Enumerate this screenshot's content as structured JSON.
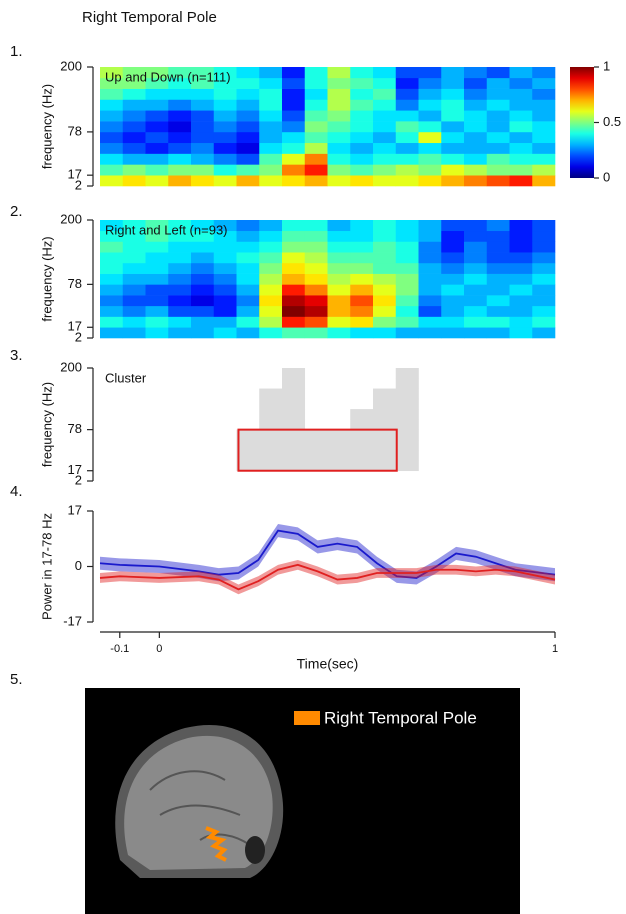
{
  "title": "Right Temporal Pole",
  "panel_labels": [
    "1.",
    "2.",
    "3.",
    "4.",
    "5."
  ],
  "brain_legend": "Right Temporal Pole",
  "chart_data": [
    {
      "type": "heatmap",
      "title": "Up and Down (n=111)",
      "ylabel": "frequency (Hz)",
      "xlim": [
        -0.15,
        1
      ],
      "ybins": [
        2,
        17,
        32,
        48,
        63,
        78,
        98,
        118,
        138,
        158,
        178,
        200
      ],
      "yticks": [
        2,
        17,
        78,
        200
      ],
      "colormap": "jet",
      "clim": [
        0,
        1
      ],
      "colorbar_ticks": [
        0,
        0.5,
        1
      ],
      "values": [
        [
          0.6,
          0.65,
          0.6,
          0.7,
          0.65,
          0.6,
          0.7,
          0.6,
          0.65,
          0.7,
          0.6,
          0.65,
          0.6,
          0.6,
          0.65,
          0.7,
          0.75,
          0.8,
          0.85,
          0.7
        ],
        [
          0.45,
          0.5,
          0.45,
          0.5,
          0.5,
          0.4,
          0.45,
          0.5,
          0.75,
          0.85,
          0.5,
          0.45,
          0.5,
          0.55,
          0.5,
          0.6,
          0.55,
          0.5,
          0.5,
          0.55
        ],
        [
          0.35,
          0.3,
          0.3,
          0.35,
          0.3,
          0.25,
          0.2,
          0.45,
          0.6,
          0.75,
          0.4,
          0.35,
          0.4,
          0.4,
          0.45,
          0.4,
          0.35,
          0.45,
          0.4,
          0.4
        ],
        [
          0.25,
          0.2,
          0.15,
          0.2,
          0.25,
          0.15,
          0.1,
          0.35,
          0.4,
          0.55,
          0.35,
          0.3,
          0.35,
          0.3,
          0.35,
          0.3,
          0.3,
          0.3,
          0.35,
          0.3
        ],
        [
          0.2,
          0.15,
          0.2,
          0.15,
          0.2,
          0.2,
          0.15,
          0.3,
          0.35,
          0.45,
          0.4,
          0.35,
          0.3,
          0.4,
          0.6,
          0.35,
          0.3,
          0.35,
          0.3,
          0.35
        ],
        [
          0.25,
          0.2,
          0.15,
          0.1,
          0.2,
          0.25,
          0.2,
          0.3,
          0.25,
          0.5,
          0.45,
          0.4,
          0.35,
          0.45,
          0.4,
          0.3,
          0.35,
          0.3,
          0.4,
          0.35
        ],
        [
          0.3,
          0.25,
          0.2,
          0.15,
          0.2,
          0.3,
          0.25,
          0.35,
          0.2,
          0.45,
          0.5,
          0.4,
          0.35,
          0.35,
          0.3,
          0.4,
          0.35,
          0.3,
          0.35,
          0.3
        ],
        [
          0.35,
          0.3,
          0.3,
          0.25,
          0.3,
          0.35,
          0.3,
          0.4,
          0.15,
          0.4,
          0.55,
          0.45,
          0.4,
          0.25,
          0.35,
          0.4,
          0.3,
          0.35,
          0.3,
          0.3
        ],
        [
          0.45,
          0.4,
          0.35,
          0.35,
          0.35,
          0.4,
          0.35,
          0.4,
          0.15,
          0.35,
          0.55,
          0.4,
          0.45,
          0.2,
          0.3,
          0.35,
          0.25,
          0.3,
          0.3,
          0.25
        ],
        [
          0.5,
          0.5,
          0.45,
          0.4,
          0.45,
          0.4,
          0.4,
          0.35,
          0.2,
          0.4,
          0.5,
          0.45,
          0.4,
          0.15,
          0.25,
          0.3,
          0.2,
          0.3,
          0.25,
          0.3
        ],
        [
          0.55,
          0.5,
          0.5,
          0.45,
          0.45,
          0.4,
          0.35,
          0.3,
          0.15,
          0.4,
          0.55,
          0.4,
          0.35,
          0.2,
          0.2,
          0.3,
          0.25,
          0.2,
          0.3,
          0.25
        ]
      ]
    },
    {
      "type": "heatmap",
      "title": "Right and Left (n=93)",
      "ylabel": "frequency (Hz)",
      "xlim": [
        -0.15,
        1
      ],
      "ybins": [
        2,
        17,
        32,
        48,
        63,
        78,
        98,
        118,
        138,
        158,
        178,
        200
      ],
      "yticks": [
        2,
        17,
        78,
        200
      ],
      "colormap": "jet",
      "clim": [
        0,
        1
      ],
      "values": [
        [
          0.3,
          0.3,
          0.35,
          0.3,
          0.3,
          0.35,
          0.3,
          0.4,
          0.45,
          0.45,
          0.4,
          0.35,
          0.35,
          0.3,
          0.3,
          0.3,
          0.3,
          0.3,
          0.35,
          0.3
        ],
        [
          0.4,
          0.35,
          0.4,
          0.35,
          0.3,
          0.3,
          0.4,
          0.55,
          0.85,
          0.8,
          0.6,
          0.65,
          0.5,
          0.45,
          0.35,
          0.35,
          0.4,
          0.4,
          0.35,
          0.4
        ],
        [
          0.3,
          0.25,
          0.3,
          0.2,
          0.2,
          0.15,
          0.3,
          0.6,
          1.0,
          0.95,
          0.7,
          0.75,
          0.6,
          0.4,
          0.2,
          0.3,
          0.35,
          0.3,
          0.3,
          0.35
        ],
        [
          0.25,
          0.2,
          0.2,
          0.15,
          0.1,
          0.15,
          0.25,
          0.65,
          0.95,
          0.9,
          0.7,
          0.8,
          0.65,
          0.45,
          0.25,
          0.3,
          0.3,
          0.35,
          0.3,
          0.3
        ],
        [
          0.3,
          0.25,
          0.2,
          0.2,
          0.15,
          0.2,
          0.3,
          0.6,
          0.85,
          0.75,
          0.6,
          0.7,
          0.6,
          0.5,
          0.3,
          0.35,
          0.3,
          0.3,
          0.35,
          0.3
        ],
        [
          0.35,
          0.3,
          0.3,
          0.25,
          0.2,
          0.25,
          0.35,
          0.55,
          0.7,
          0.65,
          0.55,
          0.6,
          0.55,
          0.5,
          0.3,
          0.3,
          0.35,
          0.3,
          0.3,
          0.35
        ],
        [
          0.4,
          0.35,
          0.35,
          0.3,
          0.25,
          0.3,
          0.35,
          0.5,
          0.65,
          0.6,
          0.5,
          0.5,
          0.45,
          0.45,
          0.3,
          0.25,
          0.3,
          0.25,
          0.25,
          0.3
        ],
        [
          0.4,
          0.4,
          0.35,
          0.35,
          0.3,
          0.35,
          0.4,
          0.45,
          0.6,
          0.55,
          0.45,
          0.45,
          0.45,
          0.4,
          0.25,
          0.2,
          0.25,
          0.2,
          0.2,
          0.25
        ],
        [
          0.45,
          0.4,
          0.4,
          0.35,
          0.35,
          0.35,
          0.35,
          0.4,
          0.5,
          0.5,
          0.4,
          0.4,
          0.45,
          0.4,
          0.25,
          0.15,
          0.25,
          0.2,
          0.15,
          0.2
        ],
        [
          0.4,
          0.4,
          0.45,
          0.4,
          0.4,
          0.35,
          0.3,
          0.35,
          0.45,
          0.45,
          0.35,
          0.35,
          0.4,
          0.35,
          0.3,
          0.15,
          0.2,
          0.2,
          0.15,
          0.2
        ],
        [
          0.35,
          0.4,
          0.45,
          0.4,
          0.35,
          0.3,
          0.25,
          0.3,
          0.4,
          0.4,
          0.3,
          0.35,
          0.4,
          0.35,
          0.3,
          0.2,
          0.2,
          0.25,
          0.15,
          0.2
        ]
      ]
    },
    {
      "type": "mask",
      "title": "Cluster",
      "ylabel": "frequency (Hz)",
      "xlim": [
        -0.15,
        1
      ],
      "ybins": [
        2,
        17,
        32,
        48,
        63,
        78,
        98,
        118,
        138,
        158,
        178,
        200
      ],
      "yticks": [
        2,
        17,
        78,
        200
      ],
      "color": "#dcdcdc",
      "box": {
        "xlim": [
          0.2,
          0.6
        ],
        "ylim": [
          17,
          78
        ],
        "color": "#e02020"
      },
      "values": [
        [
          0,
          0,
          0,
          0,
          0,
          0,
          0,
          0,
          0,
          0,
          0,
          0,
          0,
          0,
          0,
          0,
          0,
          0,
          0,
          0
        ],
        [
          0,
          0,
          0,
          0,
          0,
          0,
          1,
          1,
          1,
          1,
          1,
          1,
          1,
          1,
          0,
          0,
          0,
          0,
          0,
          0
        ],
        [
          0,
          0,
          0,
          0,
          0,
          0,
          1,
          1,
          1,
          1,
          1,
          1,
          1,
          1,
          0,
          0,
          0,
          0,
          0,
          0
        ],
        [
          0,
          0,
          0,
          0,
          0,
          0,
          1,
          1,
          1,
          1,
          1,
          1,
          1,
          1,
          0,
          0,
          0,
          0,
          0,
          0
        ],
        [
          0,
          0,
          0,
          0,
          0,
          0,
          1,
          1,
          1,
          1,
          1,
          1,
          1,
          1,
          0,
          0,
          0,
          0,
          0,
          0
        ],
        [
          0,
          0,
          0,
          0,
          0,
          0,
          0,
          1,
          1,
          0,
          0,
          1,
          1,
          1,
          0,
          0,
          0,
          0,
          0,
          0
        ],
        [
          0,
          0,
          0,
          0,
          0,
          0,
          0,
          1,
          1,
          0,
          0,
          1,
          1,
          1,
          0,
          0,
          0,
          0,
          0,
          0
        ],
        [
          0,
          0,
          0,
          0,
          0,
          0,
          0,
          1,
          1,
          0,
          0,
          0,
          1,
          1,
          0,
          0,
          0,
          0,
          0,
          0
        ],
        [
          0,
          0,
          0,
          0,
          0,
          0,
          0,
          1,
          1,
          0,
          0,
          0,
          1,
          1,
          0,
          0,
          0,
          0,
          0,
          0
        ],
        [
          0,
          0,
          0,
          0,
          0,
          0,
          0,
          0,
          1,
          0,
          0,
          0,
          0,
          1,
          0,
          0,
          0,
          0,
          0,
          0
        ],
        [
          0,
          0,
          0,
          0,
          0,
          0,
          0,
          0,
          1,
          0,
          0,
          0,
          0,
          1,
          0,
          0,
          0,
          0,
          0,
          0
        ]
      ]
    },
    {
      "type": "line",
      "ylabel": "Power in 17-78 Hz",
      "xlabel": "Time(sec)",
      "xlim": [
        -0.15,
        1
      ],
      "xticks": [
        -0.1,
        0,
        1
      ],
      "ylim": [
        -17,
        17
      ],
      "yticks": [
        -17,
        0,
        17
      ],
      "x": [
        -0.15,
        -0.1,
        0,
        0.1,
        0.15,
        0.2,
        0.25,
        0.3,
        0.35,
        0.4,
        0.45,
        0.5,
        0.55,
        0.6,
        0.65,
        0.7,
        0.75,
        0.8,
        0.85,
        0.9,
        1.0
      ],
      "series": [
        {
          "color": "#1a1acc",
          "error": 2,
          "values": [
            1,
            0.5,
            0,
            -1.5,
            -2.5,
            -2,
            2,
            11,
            10,
            6,
            7,
            6,
            1,
            -3,
            -3.5,
            0,
            4,
            3,
            1,
            -1,
            -2.5
          ]
        },
        {
          "color": "#e02020",
          "error": 1.5,
          "values": [
            -3.5,
            -3,
            -3.5,
            -3,
            -4,
            -7,
            -4.5,
            -1,
            0.5,
            -1.5,
            -4,
            -3.5,
            -2,
            -2,
            -2,
            -1,
            -1,
            -1.5,
            -1,
            -1.5,
            -4
          ]
        }
      ]
    }
  ]
}
